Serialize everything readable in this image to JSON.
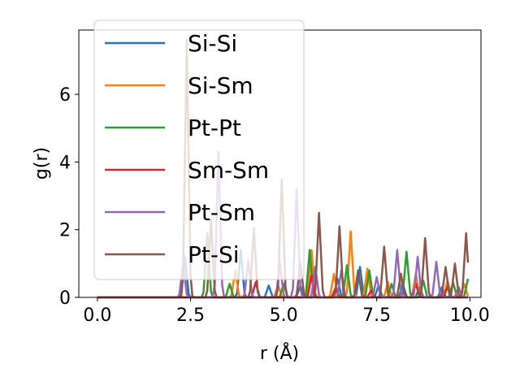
{
  "chart_data": {
    "type": "line",
    "title": "",
    "xlabel": "r (Å)",
    "ylabel": "g(r)",
    "xlim": [
      -0.5,
      10.3
    ],
    "ylim": [
      0,
      7.9
    ],
    "xticks": [
      0.0,
      2.5,
      5.0,
      7.5,
      10.0
    ],
    "xtick_labels": [
      "0.0",
      "2.5",
      "5.0",
      "7.5",
      "10.0"
    ],
    "yticks": [
      0,
      2,
      4,
      6
    ],
    "ytick_labels": [
      "0",
      "2",
      "4",
      "6"
    ],
    "grid": false,
    "legend_position": "upper-left",
    "series": [
      {
        "name": "Si-Si",
        "color": "#1f77b4",
        "peaks": [
          [
            2.35,
            1.2
          ],
          [
            3.85,
            1.4
          ],
          [
            4.6,
            0.35
          ],
          [
            5.45,
            0.35
          ],
          [
            6.45,
            0.55
          ],
          [
            7.05,
            0.9
          ],
          [
            7.55,
            0.35
          ],
          [
            8.2,
            0.4
          ],
          [
            8.65,
            0.3
          ],
          [
            9.25,
            0.3
          ]
        ]
      },
      {
        "name": "Si-Sm",
        "color": "#ff7f0e",
        "peaks": [
          [
            3.7,
            0.8
          ],
          [
            4.85,
            0.35
          ],
          [
            5.75,
            1.4
          ],
          [
            6.35,
            0.7
          ],
          [
            6.8,
            1.95
          ],
          [
            7.25,
            0.85
          ],
          [
            7.8,
            0.45
          ],
          [
            8.55,
            0.7
          ],
          [
            9.4,
            0.5
          ],
          [
            9.85,
            0.4
          ]
        ]
      },
      {
        "name": "Pt-Pt",
        "color": "#2ca02c",
        "peaks": [
          [
            2.95,
            1.9
          ],
          [
            3.55,
            0.4
          ],
          [
            5.0,
            0.4
          ],
          [
            5.7,
            1.4
          ],
          [
            6.7,
            0.95
          ],
          [
            7.3,
            0.8
          ],
          [
            7.9,
            0.4
          ],
          [
            8.3,
            1.35
          ],
          [
            8.75,
            0.5
          ],
          [
            9.55,
            0.45
          ],
          [
            9.95,
            0.55
          ]
        ]
      },
      {
        "name": "Sm-Sm",
        "color": "#d62728",
        "peaks": [
          [
            4.25,
            0.45
          ],
          [
            5.75,
            0.65
          ],
          [
            6.4,
            0.3
          ],
          [
            7.35,
            0.2
          ],
          [
            8.55,
            0.4
          ],
          [
            9.4,
            0.3
          ]
        ]
      },
      {
        "name": "Pt-Sm",
        "color": "#9467bd",
        "peaks": [
          [
            2.3,
            1.0
          ],
          [
            3.25,
            4.3
          ],
          [
            4.05,
            1.1
          ],
          [
            4.9,
            1.0
          ],
          [
            5.35,
            3.2
          ],
          [
            5.85,
            0.9
          ],
          [
            6.55,
            0.8
          ],
          [
            7.5,
            0.6
          ],
          [
            8.05,
            1.4
          ],
          [
            8.6,
            1.2
          ],
          [
            9.1,
            1.05
          ],
          [
            9.7,
            0.3
          ]
        ]
      },
      {
        "name": "Pt-Si",
        "color": "#8c564b",
        "peaks": [
          [
            2.4,
            7.6
          ],
          [
            3.05,
            2.3
          ],
          [
            4.2,
            2.05
          ],
          [
            4.95,
            3.5
          ],
          [
            5.45,
            1.0
          ],
          [
            5.95,
            2.5
          ],
          [
            6.5,
            2.1
          ],
          [
            7.0,
            0.8
          ],
          [
            7.7,
            1.5
          ],
          [
            8.15,
            0.7
          ],
          [
            8.8,
            1.75
          ],
          [
            9.35,
            0.9
          ],
          [
            9.6,
            1.0
          ],
          [
            9.9,
            1.9
          ]
        ]
      }
    ]
  }
}
